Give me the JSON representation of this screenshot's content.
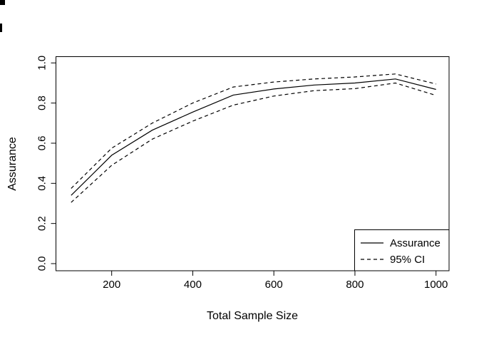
{
  "chart_data": {
    "type": "line",
    "title": "",
    "xlabel": "Total Sample Size",
    "ylabel": "Assurance",
    "xlim": [
      100,
      1000
    ],
    "ylim": [
      0.0,
      1.0
    ],
    "x_ticks": [
      200,
      400,
      600,
      800,
      1000
    ],
    "y_ticks": [
      0.0,
      0.2,
      0.4,
      0.6,
      0.8,
      1.0
    ],
    "grid": false,
    "x": [
      100,
      200,
      300,
      400,
      500,
      600,
      700,
      800,
      900,
      1000
    ],
    "series": [
      {
        "name": "Assurance",
        "style": "solid",
        "values": [
          0.34,
          0.54,
          0.665,
          0.755,
          0.84,
          0.87,
          0.89,
          0.9,
          0.92,
          0.868
        ]
      },
      {
        "name": "95% CI upper",
        "style": "dashed",
        "values": [
          0.375,
          0.575,
          0.7,
          0.8,
          0.88,
          0.905,
          0.92,
          0.93,
          0.945,
          0.895
        ]
      },
      {
        "name": "95% CI lower",
        "style": "dashed",
        "values": [
          0.305,
          0.49,
          0.62,
          0.71,
          0.79,
          0.835,
          0.862,
          0.872,
          0.9,
          0.838
        ]
      }
    ],
    "legend": {
      "position": "bottomright",
      "entries": [
        {
          "label": "Assurance",
          "style": "solid"
        },
        {
          "label": "95% CI",
          "style": "dashed"
        }
      ]
    },
    "line_color": "#000000",
    "background_color": "#ffffff"
  }
}
